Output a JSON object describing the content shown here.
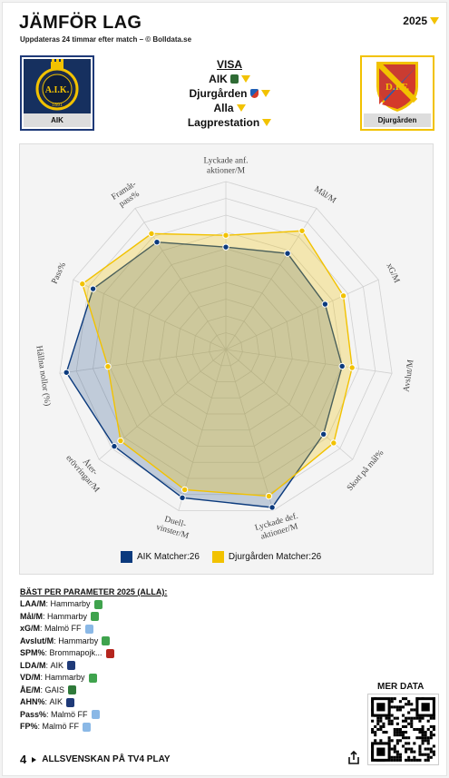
{
  "header": {
    "title": "JÄMFÖR LAG",
    "subtitle": "Uppdateras 24 timmar efter match – © Bolldata.se",
    "year": "2025"
  },
  "teams": {
    "left": {
      "name": "AIK",
      "logo_text": "A.I.K.",
      "logo_year": "1891"
    },
    "right": {
      "name": "Djurgården",
      "logo_text": "D.I.F."
    }
  },
  "visa": {
    "heading": "VISA",
    "team1": "AIK",
    "team2": "Djurgården",
    "filter": "Alla",
    "mode": "Lagprestation"
  },
  "colors": {
    "aik": "#0b3a7d",
    "djurgarden": "#f2c200",
    "accent": "#f2c200"
  },
  "chart_data": {
    "type": "radar",
    "axes": [
      "Lyckade anf. aktioner/M",
      "Mål/M",
      "xG/M",
      "Avslut/M",
      "Skott på mål%",
      "Lyckade def. aktioner/M",
      "Duell-vinster/M",
      "Åter-erövringar/M",
      "Hållna nollor (%)",
      "Pass%",
      "Framåt-pass%"
    ],
    "axis_label_lines": [
      [
        "Lyckade anf.",
        "aktioner/M"
      ],
      [
        "Mål/M"
      ],
      [
        "xG/M"
      ],
      [
        "Avslut/M"
      ],
      [
        "Skott på mål%"
      ],
      [
        "Lyckade def.",
        "aktioner/M"
      ],
      [
        "Duell-",
        "vinster/M"
      ],
      [
        "Åter-",
        "erövringar/M"
      ],
      [
        "Hållna nollor (%)"
      ],
      [
        "Pass%"
      ],
      [
        "Framåt-",
        "pass%"
      ]
    ],
    "scale_max": 1,
    "grid_levels": 10,
    "series": [
      {
        "name": "AIK Matcher:26",
        "values": [
          0.61,
          0.68,
          0.65,
          0.7,
          0.77,
          0.98,
          0.92,
          0.88,
          0.96,
          0.87,
          0.76
        ]
      },
      {
        "name": "Djurgården Matcher:26",
        "values": [
          0.68,
          0.84,
          0.77,
          0.76,
          0.85,
          0.91,
          0.87,
          0.83,
          0.71,
          0.94,
          0.82
        ]
      }
    ]
  },
  "best": {
    "heading": "BÄST PER PARAMETER 2025 (ALLA):",
    "rows": [
      {
        "key": "LAA/M",
        "team": "Hammarby",
        "color": "#3fa34d"
      },
      {
        "key": "Mål/M",
        "team": "Hammarby",
        "color": "#3fa34d"
      },
      {
        "key": "xG/M",
        "team": "Malmö FF",
        "color": "#8ab8e6"
      },
      {
        "key": "Avslut/M",
        "team": "Hammarby",
        "color": "#3fa34d"
      },
      {
        "key": "SPM%",
        "team": "Brommapojk...",
        "color": "#b5261e"
      },
      {
        "key": "LDA/M",
        "team": "AIK",
        "color": "#1f3a78"
      },
      {
        "key": "VD/M",
        "team": "Hammarby",
        "color": "#3fa34d"
      },
      {
        "key": "ÅE/M",
        "team": "GAIS",
        "color": "#2f7a3a"
      },
      {
        "key": "AHN%",
        "team": "AIK",
        "color": "#1f3a78"
      },
      {
        "key": "Pass%",
        "team": "Malmö FF",
        "color": "#8ab8e6"
      },
      {
        "key": "FP%",
        "team": "Malmö FF",
        "color": "#8ab8e6"
      }
    ]
  },
  "more_data": "MER DATA",
  "footer": {
    "brand": "4",
    "text": "ALLSVENSKAN PÅ TV4 PLAY"
  }
}
